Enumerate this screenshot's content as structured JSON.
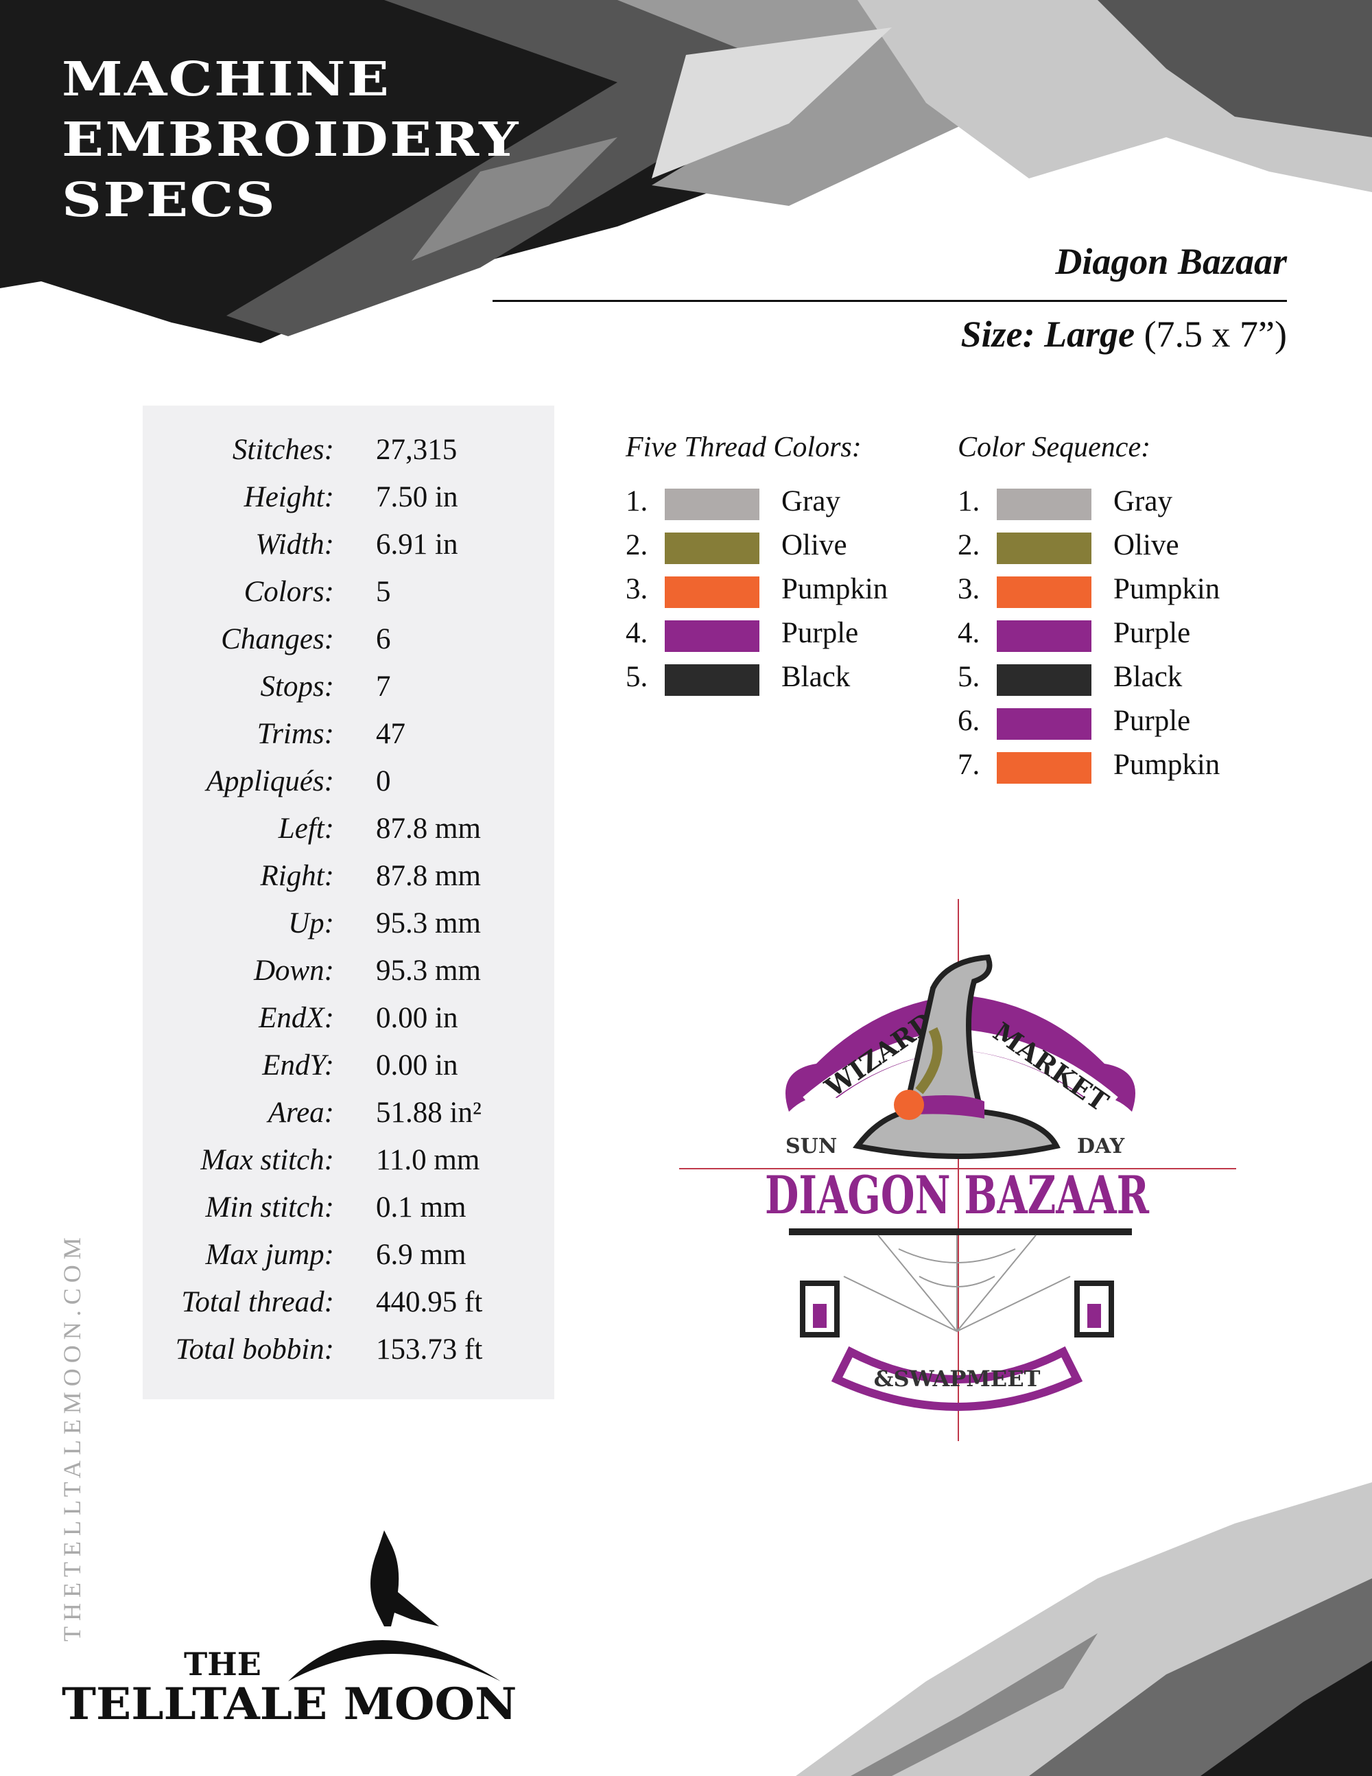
{
  "header": {
    "title_lines": [
      "MACHINE",
      "EMBROIDERY",
      "SPECS"
    ],
    "design_name": "Diagon Bazaar",
    "size_label": "Size: Large",
    "size_value": "(7.5 x 7”)"
  },
  "stats": [
    {
      "label": "Stitches:",
      "value": "27,315"
    },
    {
      "label": "Height:",
      "value": "7.50 in"
    },
    {
      "label": "Width:",
      "value": "6.91 in"
    },
    {
      "label": "Colors:",
      "value": "5"
    },
    {
      "label": "Changes:",
      "value": "6"
    },
    {
      "label": "Stops:",
      "value": "7"
    },
    {
      "label": "Trims:",
      "value": "47"
    },
    {
      "label": "Appliqués:",
      "value": "0"
    },
    {
      "label": "Left:",
      "value": "87.8 mm"
    },
    {
      "label": "Right:",
      "value": "87.8 mm"
    },
    {
      "label": "Up:",
      "value": "95.3 mm"
    },
    {
      "label": "Down:",
      "value": "95.3 mm"
    },
    {
      "label": "EndX:",
      "value": "0.00 in"
    },
    {
      "label": "EndY:",
      "value": "0.00 in"
    },
    {
      "label": "Area:",
      "value": "51.88 in²"
    },
    {
      "label": "Max stitch:",
      "value": "11.0 mm"
    },
    {
      "label": "Min stitch:",
      "value": "0.1 mm"
    },
    {
      "label": "Max jump:",
      "value": "6.9 mm"
    },
    {
      "label": "Total thread:",
      "value": "440.95 ft"
    },
    {
      "label": "Total bobbin:",
      "value": "153.73 ft"
    }
  ],
  "thread_colors": {
    "heading": "Five Thread Colors:",
    "items": [
      {
        "num": "1.",
        "name": "Gray",
        "color": "#afabaa"
      },
      {
        "num": "2.",
        "name": "Olive",
        "color": "#867d38"
      },
      {
        "num": "3.",
        "name": "Pumpkin",
        "color": "#f0652f"
      },
      {
        "num": "4.",
        "name": "Purple",
        "color": "#8e278b"
      },
      {
        "num": "5.",
        "name": "Black",
        "color": "#2b2b2b"
      }
    ]
  },
  "color_sequence": {
    "heading": "Color Sequence:",
    "items": [
      {
        "num": "1.",
        "name": "Gray",
        "color": "#afabaa"
      },
      {
        "num": "2.",
        "name": "Olive",
        "color": "#867d38"
      },
      {
        "num": "3.",
        "name": "Pumpkin",
        "color": "#f0652f"
      },
      {
        "num": "4.",
        "name": "Purple",
        "color": "#8e278b"
      },
      {
        "num": "5.",
        "name": "Black",
        "color": "#2b2b2b"
      },
      {
        "num": "6.",
        "name": "Purple",
        "color": "#8e278b"
      },
      {
        "num": "7.",
        "name": "Pumpkin",
        "color": "#f0652f"
      }
    ]
  },
  "design_preview": {
    "arc_left": "WIZARD",
    "arc_right": "MARKET",
    "side_left": "SUN",
    "side_right": "DAY",
    "main_text": "DIAGON BAZAAR",
    "banner_text": "&SWAPMEET"
  },
  "footer": {
    "website": "THETELLTALEMOON.COM",
    "logo_the": "THE",
    "logo_main": "TELLTALE MOON"
  }
}
